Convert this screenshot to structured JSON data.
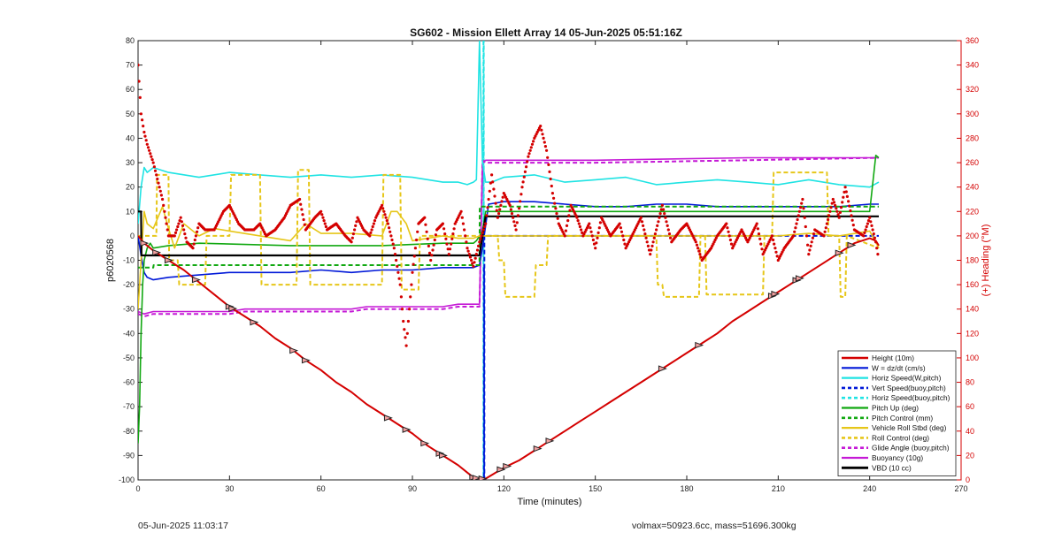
{
  "chart_data": {
    "type": "line",
    "title": "SG602 - Mission Ellett Array 14 05-Jun-2025 05:51:16Z",
    "xlabel": "Time (minutes)",
    "ylabel": "p6020568",
    "y2label": "(+) Heading (°M)",
    "xlim": [
      0,
      270
    ],
    "ylim": [
      -100,
      80
    ],
    "y2lim": [
      0,
      360
    ],
    "xticks": [
      0,
      30,
      60,
      90,
      120,
      150,
      180,
      210,
      240,
      270
    ],
    "yticks": [
      -100,
      -90,
      -80,
      -70,
      -60,
      -50,
      -40,
      -30,
      -20,
      -10,
      0,
      10,
      20,
      30,
      40,
      50,
      60,
      70,
      80
    ],
    "y2ticks": [
      0,
      20,
      40,
      60,
      80,
      100,
      120,
      140,
      160,
      180,
      200,
      220,
      240,
      260,
      280,
      300,
      320,
      340,
      360
    ],
    "legend_position": "bottom-right",
    "colors": {
      "height": "#d40000",
      "w": "#0018d8",
      "horiz": "#1fe3e3",
      "pitch_up": "#11a811",
      "roll": "#e6c619",
      "buoyancy": "#c51ad6",
      "vbd": "#000000",
      "heading": "#d40000"
    },
    "series": [
      {
        "name": "Height (10m)",
        "x": [
          0,
          2,
          5,
          10,
          15,
          20,
          25,
          30,
          35,
          40,
          45,
          50,
          55,
          60,
          65,
          70,
          75,
          80,
          85,
          90,
          95,
          100,
          105,
          108,
          110,
          112,
          114,
          116,
          120,
          125,
          130,
          135,
          140,
          145,
          150,
          155,
          160,
          165,
          170,
          175,
          180,
          185,
          190,
          195,
          200,
          205,
          210,
          215,
          220,
          225,
          230,
          235,
          240,
          242,
          243
        ],
        "y": [
          0,
          -3,
          -6,
          -10,
          -14,
          -19,
          -24,
          -29,
          -33,
          -37,
          -42,
          -46,
          -51,
          -55,
          -60,
          -64,
          -69,
          -73,
          -77,
          -81,
          -86,
          -90,
          -94,
          -97,
          -99,
          -99.5,
          -99.5,
          -98,
          -95,
          -92,
          -88,
          -84,
          -80,
          -76,
          -72,
          -68,
          -64,
          -60,
          -56,
          -52,
          -48,
          -44,
          -40,
          -35,
          -31,
          -27,
          -23,
          -19,
          -15,
          -11,
          -7,
          -3,
          -1,
          -2,
          -4
        ]
      },
      {
        "name": "W = dz/dt (cm/s)",
        "x": [
          0,
          1,
          2,
          3,
          5,
          10,
          20,
          30,
          40,
          50,
          60,
          70,
          80,
          90,
          100,
          105,
          110,
          112,
          113,
          115,
          120,
          130,
          140,
          150,
          160,
          170,
          180,
          190,
          200,
          210,
          220,
          230,
          240,
          243
        ],
        "y": [
          0,
          -8,
          -15,
          -17,
          -18,
          -17,
          -16,
          -15,
          -15,
          -15,
          -14,
          -15,
          -14,
          -14,
          -13,
          -13,
          -13,
          -12,
          -5,
          13,
          14,
          14,
          13,
          12,
          12,
          13,
          13,
          12,
          12,
          12,
          12,
          12,
          13,
          13
        ]
      },
      {
        "name": "Horiz Speed(W,pitch)",
        "x": [
          0,
          1,
          2,
          3,
          5,
          10,
          20,
          30,
          40,
          50,
          60,
          70,
          80,
          90,
          100,
          105,
          108,
          110,
          111,
          112,
          113,
          114,
          116,
          120,
          130,
          140,
          150,
          160,
          170,
          180,
          190,
          200,
          210,
          220,
          230,
          240,
          243
        ],
        "y": [
          5,
          20,
          28,
          26,
          28,
          26,
          24,
          26,
          25,
          24,
          25,
          24,
          25,
          24,
          22,
          22,
          21,
          22,
          23,
          80,
          30,
          22,
          22,
          24,
          25,
          22,
          23,
          24,
          21,
          22,
          23,
          22,
          21,
          23,
          21,
          20,
          22
        ]
      },
      {
        "name": "Vert Speed(buoy,pitch)",
        "x": [
          113.5,
          113.5,
          113.6,
          113.6,
          243
        ],
        "y": [
          -13,
          -100,
          -100,
          0,
          0
        ]
      },
      {
        "name": "Horiz Speed(buoy,pitch)",
        "x": [
          113.3,
          113.3,
          113.4,
          113.4
        ],
        "y": [
          80,
          -100,
          -100,
          80
        ]
      },
      {
        "name": "Pitch Up (deg)",
        "x": [
          0,
          0.5,
          1,
          1.5,
          2,
          3,
          4,
          5,
          10,
          20,
          50,
          80,
          100,
          110,
          111,
          112,
          113,
          114,
          116,
          120,
          150,
          180,
          210,
          230,
          240,
          242,
          243
        ],
        "y": [
          -85,
          -70,
          -40,
          -20,
          -10,
          -5,
          -3,
          -5,
          -4,
          -3,
          -4,
          -4,
          -3,
          -3,
          -2,
          0,
          2,
          10,
          10,
          10,
          10,
          10,
          10,
          10,
          10,
          33,
          32
        ]
      },
      {
        "name": "Pitch Control (mm)",
        "x": [
          0,
          5,
          5.1,
          112,
          112.1,
          243
        ],
        "y": [
          -13,
          -13,
          -12,
          -12,
          12,
          12
        ]
      },
      {
        "name": "Vehicle Roll Stbd (deg)",
        "x": [
          0,
          2,
          3,
          5,
          8,
          10,
          12,
          15,
          20,
          25,
          30,
          40,
          50,
          55,
          60,
          70,
          80,
          83,
          85,
          88,
          90,
          95,
          100,
          105,
          110,
          112,
          114,
          116,
          120,
          130,
          140,
          150,
          160,
          170,
          180,
          190,
          200,
          210,
          220,
          230,
          240,
          243
        ],
        "y": [
          -30,
          10,
          5,
          3,
          12,
          3,
          -5,
          5,
          0,
          3,
          2,
          0,
          -2,
          5,
          1,
          1,
          0,
          10,
          10,
          5,
          -2,
          -1,
          0,
          -1,
          -1,
          0,
          0,
          0,
          0,
          0,
          0,
          0,
          0,
          0,
          0,
          0,
          0,
          0,
          1,
          0,
          2,
          -5
        ]
      },
      {
        "name": "Roll Control (deg)",
        "x": [
          0,
          6,
          6.2,
          10,
          10.2,
          13,
          13.5,
          22,
          22.5,
          30,
          30.5,
          40,
          40.5,
          52,
          52.5,
          56,
          56.5,
          80,
          80.5,
          86,
          86.5,
          92,
          92.5,
          110,
          112,
          113,
          113.5,
          118,
          118.5,
          120,
          120.5,
          130,
          130.5,
          134,
          134.5,
          170,
          170.5,
          172,
          172.5,
          184,
          184.5,
          186,
          186.5,
          205,
          205.5,
          208,
          208.5,
          226,
          226.5,
          230,
          230.5,
          232,
          232.5,
          243
        ],
        "y": [
          0,
          0,
          25,
          25,
          -10,
          -10,
          -20,
          -20,
          0,
          0,
          25,
          25,
          -20,
          -20,
          27,
          27,
          -20,
          -20,
          25,
          25,
          -22,
          -22,
          0,
          0,
          0,
          0,
          0,
          0,
          -10,
          -10,
          -25,
          -25,
          -12,
          -12,
          0,
          0,
          -20,
          -20,
          -25,
          -25,
          0,
          0,
          -24,
          -24,
          0,
          0,
          26,
          26,
          0,
          0,
          -25,
          -25,
          0,
          -5
        ]
      },
      {
        "name": "Glide Angle (buoy,pitch)",
        "x": [
          0,
          2,
          5,
          30,
          35,
          70,
          75,
          100,
          105,
          112,
          113,
          114,
          150,
          200,
          243
        ],
        "y": [
          -32,
          -33,
          -32,
          -32,
          -31,
          -31,
          -30,
          -30,
          -29,
          -29,
          31,
          30,
          30,
          31,
          32
        ]
      },
      {
        "name": "Buoyancy (10g)",
        "x": [
          0,
          2,
          5,
          30,
          35,
          70,
          75,
          100,
          105,
          112,
          113,
          114,
          150,
          200,
          243
        ],
        "y": [
          -31,
          -32,
          -31,
          -31,
          -30,
          -30,
          -29,
          -29,
          -28,
          -28,
          30,
          31,
          31,
          32,
          32
        ]
      },
      {
        "name": "VBD (10 cc)",
        "x": [
          0,
          1,
          1.1,
          112,
          114,
          243
        ],
        "y": [
          10,
          10,
          -8,
          -8,
          8,
          8
        ]
      }
    ],
    "heading": {
      "x": [
        0,
        1,
        2,
        3,
        5,
        8,
        10,
        12,
        14,
        16,
        18,
        20,
        22,
        25,
        28,
        30,
        33,
        35,
        38,
        40,
        42,
        45,
        48,
        50,
        53,
        55,
        58,
        60,
        62,
        65,
        68,
        70,
        72,
        74,
        76,
        78,
        80,
        82,
        84,
        86,
        87,
        88,
        89,
        90,
        92,
        94,
        96,
        98,
        100,
        102,
        104,
        106,
        108,
        110,
        112,
        114,
        116,
        118,
        120,
        122,
        124,
        126,
        128,
        130,
        132,
        134,
        136,
        138,
        140,
        142,
        144,
        146,
        148,
        150,
        152,
        155,
        158,
        160,
        162,
        165,
        168,
        170,
        172,
        175,
        178,
        180,
        183,
        185,
        188,
        190,
        193,
        195,
        198,
        200,
        203,
        205,
        208,
        210,
        212,
        215,
        218,
        220,
        222,
        225,
        228,
        230,
        232,
        235,
        238,
        240,
        242,
        243
      ],
      "y": [
        340,
        300,
        285,
        275,
        260,
        230,
        200,
        200,
        215,
        195,
        190,
        210,
        205,
        205,
        220,
        225,
        210,
        205,
        205,
        210,
        200,
        205,
        215,
        225,
        230,
        205,
        215,
        220,
        205,
        210,
        200,
        195,
        215,
        205,
        200,
        215,
        225,
        210,
        190,
        160,
        130,
        110,
        140,
        170,
        210,
        215,
        180,
        205,
        210,
        185,
        210,
        220,
        190,
        175,
        195,
        210,
        250,
        215,
        235,
        225,
        205,
        240,
        265,
        280,
        290,
        270,
        235,
        210,
        200,
        225,
        215,
        200,
        210,
        190,
        215,
        200,
        210,
        190,
        200,
        215,
        185,
        205,
        225,
        195,
        205,
        210,
        195,
        180,
        190,
        200,
        210,
        190,
        205,
        195,
        210,
        185,
        200,
        180,
        190,
        200,
        230,
        185,
        205,
        200,
        230,
        215,
        240,
        205,
        200,
        215,
        195,
        180
      ]
    },
    "footer_left": "05-Jun-2025 11:03:17",
    "footer_right": "volmax=50923.6cc, mass=51696.300kg"
  }
}
